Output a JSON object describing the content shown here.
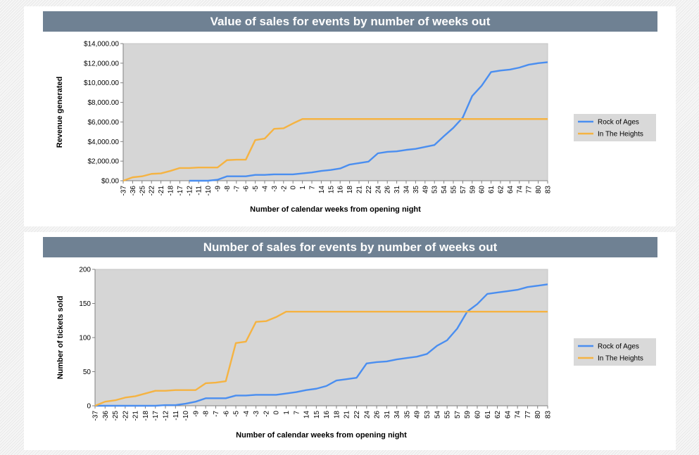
{
  "chart_data": [
    {
      "type": "line",
      "title": "Value of sales for events by number of weeks out",
      "xlabel": "Number of calendar weeks from opening night",
      "ylabel": "Revenue generated",
      "ylim": [
        0,
        14000
      ],
      "yticks": [
        "$0.00",
        "$2,000.00",
        "$4,000.00",
        "$6,000.00",
        "$8,000.00",
        "$10,000.00",
        "$12,000.00",
        "$14,000.00"
      ],
      "grid": false,
      "legend": "right",
      "categories": [
        "-37",
        "-36",
        "-25",
        "-22",
        "-21",
        "-18",
        "-17",
        "-12",
        "-11",
        "-10",
        "-9",
        "-8",
        "-7",
        "-6",
        "-5",
        "-4",
        "-3",
        "-2",
        "0",
        "1",
        "7",
        "14",
        "15",
        "16",
        "18",
        "21",
        "22",
        "24",
        "26",
        "31",
        "34",
        "35",
        "49",
        "53",
        "54",
        "55",
        "57",
        "59",
        "60",
        "61",
        "62",
        "64",
        "74",
        "77",
        "80",
        "83"
      ],
      "series": [
        {
          "name": "Rock of Ages",
          "color": "#4a8ef0",
          "values": [
            null,
            null,
            null,
            null,
            null,
            null,
            null,
            0,
            0,
            0,
            100,
            450,
            450,
            450,
            600,
            600,
            650,
            650,
            650,
            750,
            850,
            1000,
            1100,
            1250,
            1650,
            1800,
            1950,
            2800,
            2950,
            3000,
            3150,
            3250,
            3450,
            3650,
            4550,
            5400,
            6450,
            8650,
            9700,
            11100,
            11250,
            11350,
            11550,
            11850,
            12000,
            12100
          ]
        },
        {
          "name": "In The Heights",
          "color": "#f5b342",
          "values": [
            0,
            350,
            450,
            700,
            750,
            1000,
            1300,
            1300,
            1350,
            1350,
            1350,
            2100,
            2150,
            2150,
            4150,
            4300,
            5300,
            5350,
            5850,
            6300,
            6300,
            6300,
            6300,
            6300,
            6300,
            6300,
            6300,
            6300,
            6300,
            6300,
            6300,
            6300,
            6300,
            6300,
            6300,
            6300,
            6300,
            6300,
            6300,
            6300,
            6300,
            6300,
            6300,
            6300,
            6300,
            6300
          ]
        }
      ]
    },
    {
      "type": "line",
      "title": "Number of sales for events by number of weeks out",
      "xlabel": "Number of calendar weeks from opening night",
      "ylabel": "Number of tickets sold",
      "ylim": [
        0,
        200
      ],
      "yticks": [
        "0",
        "50",
        "100",
        "150",
        "200"
      ],
      "grid": false,
      "legend": "right",
      "categories": [
        "-37",
        "-36",
        "-25",
        "-22",
        "-21",
        "-18",
        "-17",
        "-12",
        "-11",
        "-10",
        "-9",
        "-8",
        "-7",
        "-6",
        "-5",
        "-4",
        "-3",
        "-2",
        "0",
        "1",
        "7",
        "14",
        "15",
        "16",
        "18",
        "21",
        "22",
        "24",
        "26",
        "31",
        "34",
        "35",
        "49",
        "53",
        "54",
        "55",
        "57",
        "59",
        "60",
        "61",
        "62",
        "64",
        "74",
        "77",
        "80",
        "83"
      ],
      "series": [
        {
          "name": "Rock of Ages",
          "color": "#4a8ef0",
          "values": [
            0,
            0,
            0,
            0,
            0,
            0,
            0,
            1,
            1,
            3,
            6,
            11,
            11,
            11,
            15,
            15,
            16,
            16,
            16,
            18,
            20,
            23,
            25,
            29,
            37,
            39,
            41,
            62,
            64,
            65,
            68,
            70,
            72,
            76,
            88,
            96,
            113,
            138,
            149,
            164,
            166,
            168,
            170,
            174,
            176,
            178
          ]
        },
        {
          "name": "In The Heights",
          "color": "#f5b342",
          "values": [
            0,
            6,
            8,
            12,
            14,
            18,
            22,
            22,
            23,
            23,
            23,
            33,
            34,
            36,
            92,
            94,
            123,
            124,
            130,
            138,
            138,
            138,
            138,
            138,
            138,
            138,
            138,
            138,
            138,
            138,
            138,
            138,
            138,
            138,
            138,
            138,
            138,
            138,
            138,
            138,
            138,
            138,
            138,
            138,
            138,
            138
          ]
        }
      ]
    }
  ]
}
